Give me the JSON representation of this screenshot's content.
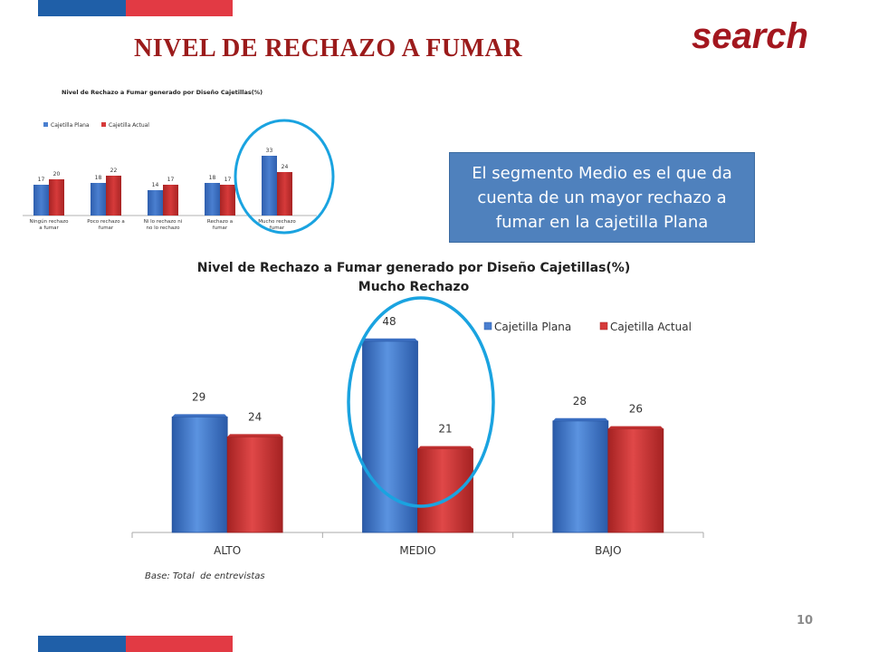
{
  "header": {
    "title": "NIVEL DE RECHAZO A FUMAR",
    "brand": "search"
  },
  "callout": "El segmento Medio es el que da cuenta de un mayor rechazo a fumar en la cajetilla Plana",
  "footer": {
    "base_note": "Base: Total  de entrevistas",
    "page_number": "10"
  },
  "colors": {
    "blue": "#4a7fd0",
    "red": "#d63a3a",
    "highlight_circle": "#1aa3e0",
    "title_red": "#9b1b1b"
  },
  "chart_data": [
    {
      "type": "bar",
      "title": "Nivel de Rechazo a Fumar generado por Diseño Cajetillas(%)",
      "categories": [
        "Ningún rechazo a fumar",
        "Poco rechazo a fumar",
        "Ni lo rechazo ni no lo rechazo",
        "Rechazo a fumar",
        "Mucho rechazo fumar"
      ],
      "series": [
        {
          "name": "Cajetilla Plana",
          "values": [
            17,
            18,
            14,
            18,
            33
          ]
        },
        {
          "name": "Cajetilla Actual",
          "values": [
            20,
            22,
            17,
            17,
            24
          ]
        }
      ],
      "legend": "top-left",
      "highlight": "Mucho rechazo fumar"
    },
    {
      "type": "bar",
      "title": "Nivel de Rechazo a Fumar generado por Diseño Cajetillas(%)",
      "subtitle": "Mucho Rechazo",
      "categories": [
        "ALTO",
        "MEDIO",
        "BAJO"
      ],
      "series": [
        {
          "name": "Cajetilla Plana",
          "values": [
            29,
            48,
            28
          ]
        },
        {
          "name": "Cajetilla Actual",
          "values": [
            24,
            21,
            26
          ]
        }
      ],
      "ylim": [
        0,
        50
      ],
      "legend": "top-right",
      "highlight": "MEDIO"
    }
  ]
}
